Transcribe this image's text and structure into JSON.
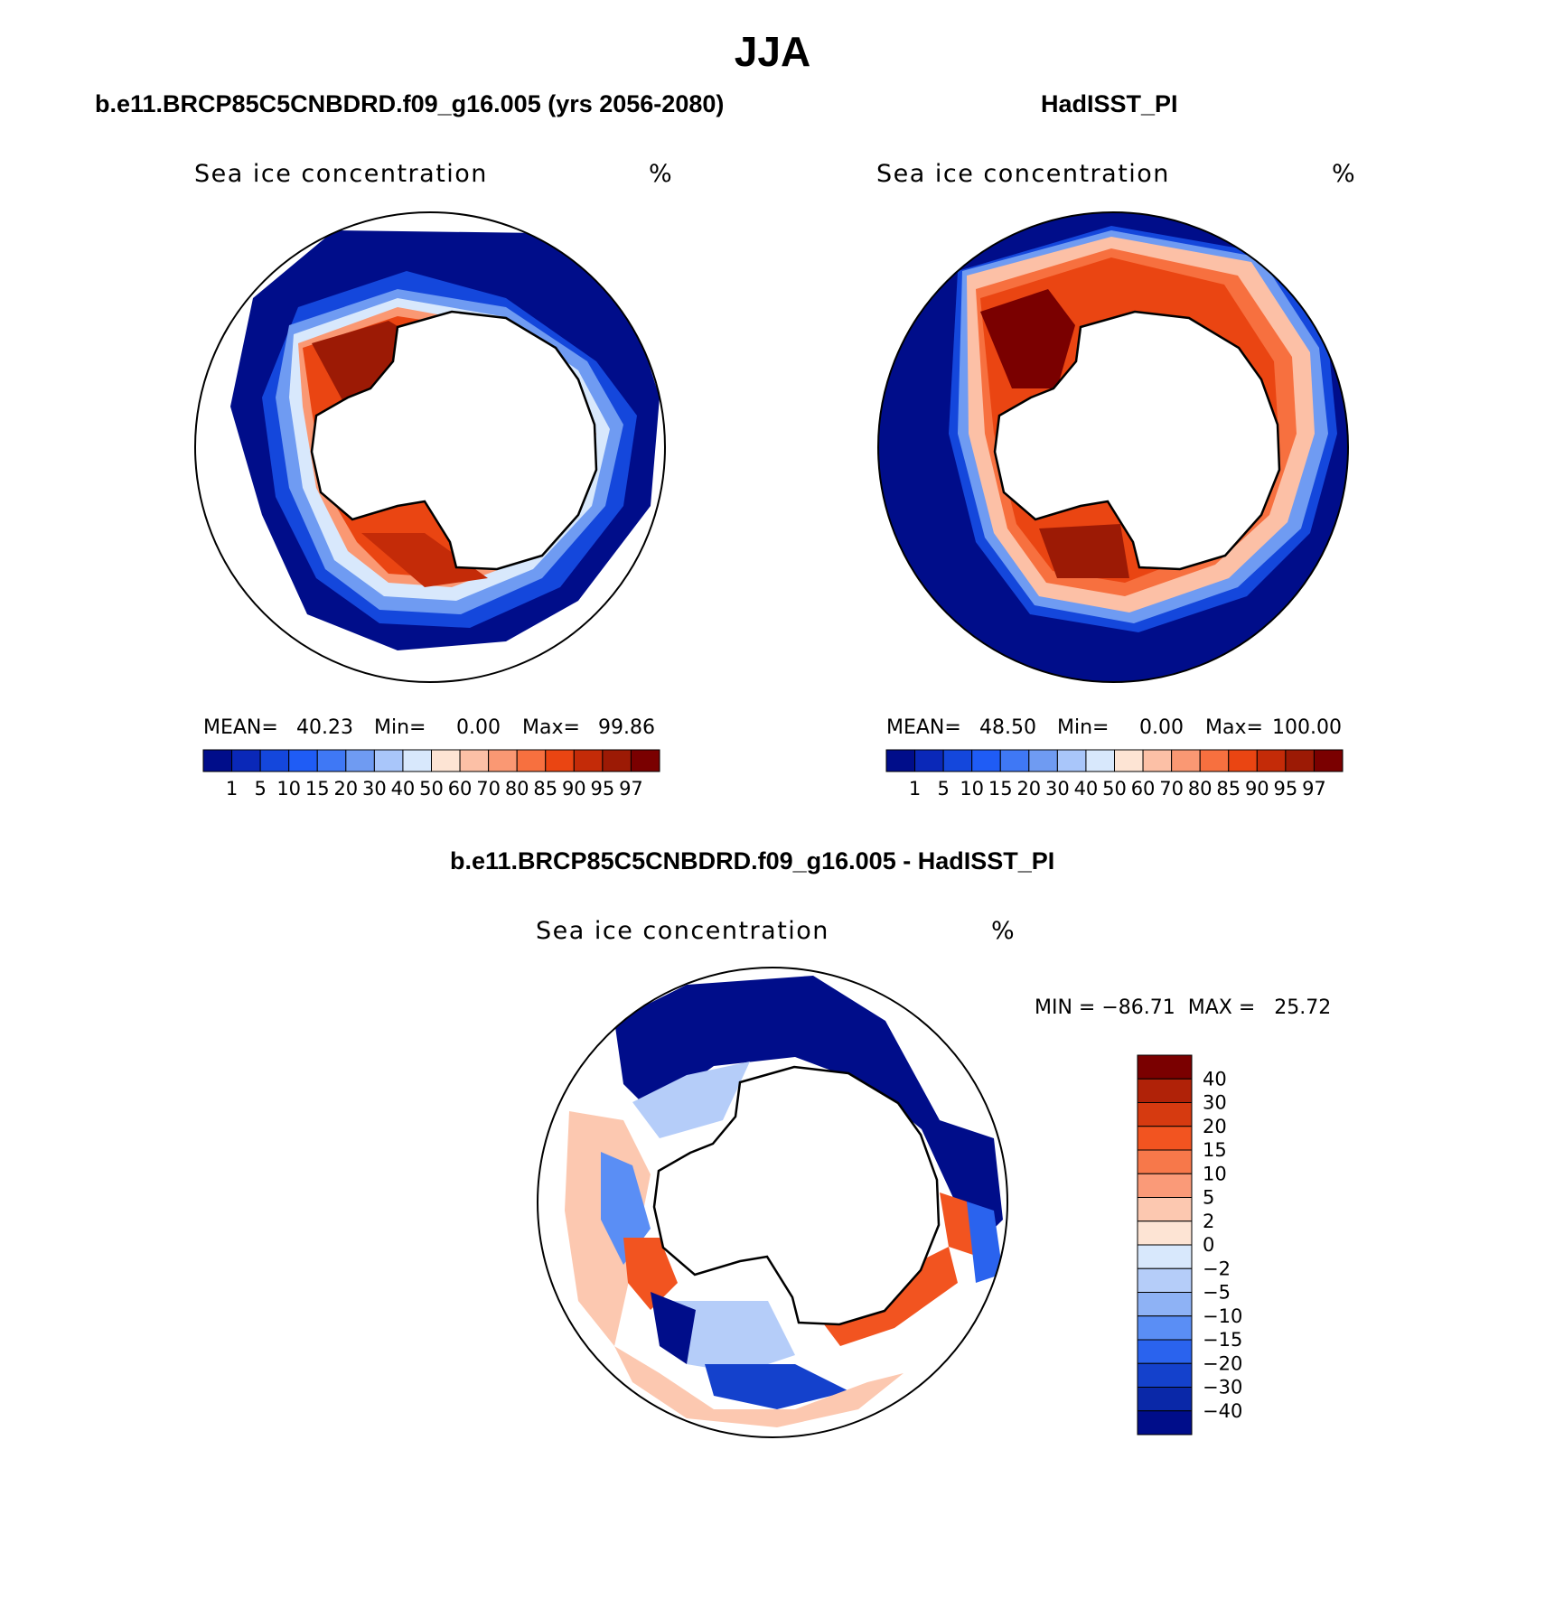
{
  "title": "JJA",
  "panels": [
    {
      "title": "b.e11.BRCP85C5CNBDRD.f09_g16.005 (yrs 2056-2080)",
      "subtitle": "Sea ice concentration",
      "units": "%",
      "stats": {
        "mean_label": "MEAN=",
        "mean": "40.23",
        "min_label": "Min=",
        "min": "0.00",
        "max_label": "Max=",
        "max": "99.86"
      }
    },
    {
      "title": "HadISST_PI",
      "subtitle": "Sea ice concentration",
      "units": "%",
      "stats": {
        "mean_label": "MEAN=",
        "mean": "48.50",
        "min_label": "Min=",
        "min": "0.00",
        "max_label": "Max=",
        "max": "100.00"
      }
    },
    {
      "title": "b.e11.BRCP85C5CNBDRD.f09_g16.005 - HadISST_PI",
      "subtitle": "Sea ice concentration",
      "units": "%",
      "stats_text": "MIN = −86.71  MAX =   25.72"
    }
  ],
  "colorbar_concentration": {
    "labels": [
      "1",
      "5",
      "10",
      "15",
      "20",
      "30",
      "40",
      "50",
      "60",
      "70",
      "80",
      "85",
      "90",
      "95",
      "97"
    ],
    "colors": [
      "#000d8a",
      "#0a28b8",
      "#1447dc",
      "#1f5cf5",
      "#3f78f5",
      "#6f9bf2",
      "#a9c6fa",
      "#d8e8fc",
      "#fde4d4",
      "#fcc0a6",
      "#fa9873",
      "#f7703f",
      "#ea4512",
      "#c42b08",
      "#9c1a05",
      "#7a0000"
    ]
  },
  "colorbar_difference": {
    "labels": [
      "40",
      "30",
      "20",
      "15",
      "10",
      "5",
      "2",
      "0",
      "−2",
      "−5",
      "−10",
      "−15",
      "−20",
      "−30",
      "−40"
    ],
    "colors": [
      "#7a0000",
      "#b02208",
      "#d63a10",
      "#f25420",
      "#f7784a",
      "#fa9a78",
      "#fcc8b0",
      "#fde4d4",
      "#d8e8fc",
      "#b5cdf9",
      "#8eb2f5",
      "#5a8ef5",
      "#2a63ee",
      "#1441cc",
      "#0a28a8",
      "#000d8a"
    ]
  }
}
